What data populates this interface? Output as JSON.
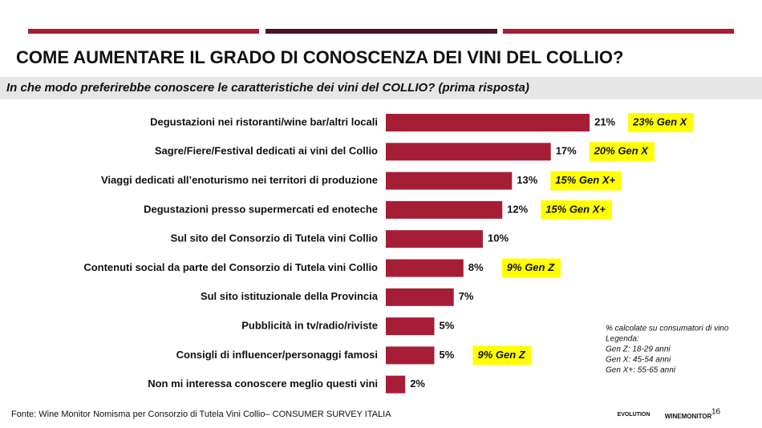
{
  "chart_data": {
    "type": "bar",
    "orientation": "horizontal",
    "title": "COME AUMENTARE IL GRADO DI CONOSCENZA DEI VINI DEL COLLIO?",
    "subtitle": "In che modo preferirebbe conoscere le caratteristiche dei vini del COLLIO? (prima risposta)",
    "categories": [
      "Degustazioni nei ristoranti/wine bar/altri locali",
      "Sagre/Fiere/Festival dedicati ai vini del Collio",
      "Viaggi dedicati all’enoturismo nei territori di produzione",
      "Degustazioni presso supermercati ed enoteche",
      "Sul sito del Consorzio di Tutela vini Collio",
      "Contenuti social da parte del Consorzio di Tutela vini Collio",
      "Sul sito istituzionale della Provincia",
      "Pubblicità in tv/radio/riviste",
      "Consigli di influencer/personaggi famosi",
      "Non mi interessa conoscere meglio questi vini"
    ],
    "values": [
      21,
      17,
      13,
      12,
      10,
      8,
      7,
      5,
      5,
      2
    ],
    "value_labels": [
      "21%",
      "17%",
      "13%",
      "12%",
      "10%",
      "8%",
      "7%",
      "5%",
      "5%",
      "2%"
    ],
    "highlights": [
      "23% Gen X",
      "20% Gen X",
      "15% Gen X+",
      "15% Gen X+",
      null,
      "9% Gen Z",
      null,
      null,
      "9% Gen Z",
      null
    ],
    "color": "#a51e36",
    "highlight_color": "#ffff00",
    "notes": [
      "% calcolate su consumatori di vino",
      "Legenda:",
      "Gen Z: 18-29 anni",
      "Gen X: 45-54 anni",
      "Gen X+: 55-65 anni"
    ],
    "source": "Fonte: Wine Monitor Nomisma per Consorzio di Tutela Vini Collio– CONSUMER SURVEY ITALIA",
    "page_number": "16",
    "logos": [
      "EVOLUTION",
      "WINEMONITOR"
    ]
  }
}
